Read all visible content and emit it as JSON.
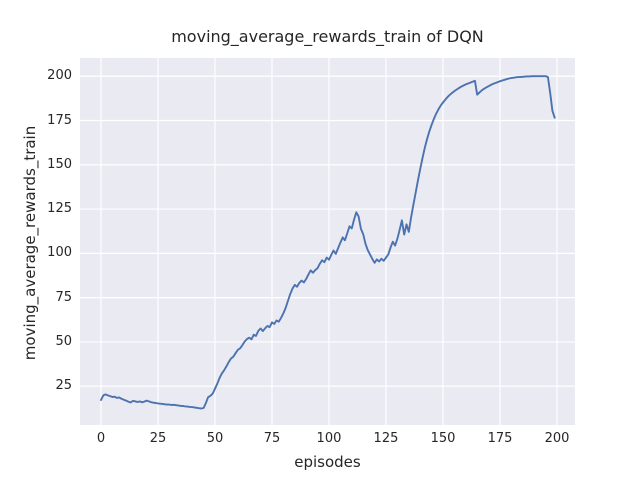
{
  "figure": {
    "background": "#ffffff"
  },
  "chart_data": {
    "type": "line",
    "title": "moving_average_rewards_train of DQN",
    "xlabel": "episodes",
    "ylabel": "moving_average_rewards_train",
    "style": "seaborn-darkgrid",
    "grid": true,
    "legend": false,
    "x_ticks": [
      0,
      25,
      50,
      75,
      100,
      125,
      150,
      175,
      200
    ],
    "y_ticks": [
      25,
      50,
      75,
      100,
      125,
      150,
      175,
      200
    ],
    "xlim": [
      -9.2,
      207.9
    ],
    "ylim": [
      3.1,
      210.3
    ],
    "colors": {
      "line": "#4C72B0",
      "plot_background": "#EAEAF2",
      "grid": "#FFFFFF",
      "text": "#262626"
    },
    "series": [
      {
        "name": "moving_average_rewards_train",
        "x_start": 0,
        "x_step": 1,
        "values": [
          17.2,
          19.8,
          20.4,
          19.8,
          19.4,
          18.9,
          19.1,
          18.4,
          18.7,
          17.9,
          17.4,
          16.9,
          16.3,
          15.8,
          16.7,
          16.5,
          16.1,
          16.4,
          15.9,
          16.3,
          16.9,
          16.4,
          16.0,
          15.7,
          15.5,
          15.3,
          15.1,
          15.0,
          14.8,
          14.7,
          14.6,
          14.4,
          14.5,
          14.3,
          14.1,
          13.9,
          13.8,
          13.6,
          13.5,
          13.3,
          13.2,
          13.0,
          12.8,
          12.6,
          12.4,
          12.7,
          15.5,
          18.8,
          19.6,
          20.8,
          23.6,
          26.4,
          29.6,
          32.1,
          34.0,
          36.2,
          38.6,
          40.6,
          41.6,
          43.6,
          45.5,
          46.4,
          48.1,
          50.2,
          51.6,
          52.4,
          51.5,
          54.1,
          53.4,
          56.2,
          57.6,
          56.1,
          57.7,
          59.0,
          58.4,
          61.0,
          60.2,
          62.1,
          61.4,
          63.6,
          66.2,
          69.3,
          73.1,
          77.0,
          80.1,
          82.2,
          81.2,
          83.3,
          84.6,
          83.6,
          85.6,
          88.2,
          90.4,
          89.1,
          90.6,
          91.7,
          94.2,
          96.1,
          95.0,
          97.6,
          96.4,
          99.2,
          101.6,
          99.7,
          103.0,
          106.1,
          109.0,
          107.4,
          111.2,
          115.3,
          114.1,
          119.2,
          123.2,
          120.8,
          113.9,
          110.8,
          105.4,
          101.9,
          99.4,
          96.9,
          94.7,
          96.6,
          95.4,
          97.0,
          95.8,
          97.6,
          99.4,
          103.2,
          106.6,
          104.4,
          108.3,
          113.4,
          118.6,
          110.6,
          116.4,
          112.2,
          120.3,
          127.2,
          134.1,
          141.0,
          147.6,
          153.8,
          159.4,
          164.4,
          168.8,
          172.6,
          175.9,
          178.8,
          181.3,
          183.4,
          185.2,
          186.8,
          188.2,
          189.5,
          190.6,
          191.6,
          192.5,
          193.3,
          194.1,
          194.8,
          195.4,
          195.9,
          196.4,
          196.9,
          197.4,
          189.6,
          190.9,
          192.0,
          192.9,
          193.7,
          194.4,
          195.1,
          195.7,
          196.2,
          196.7,
          197.2,
          197.6,
          198.0,
          198.4,
          198.7,
          199.0,
          199.2,
          199.4,
          199.5,
          199.6,
          199.7,
          199.8,
          199.9,
          199.9,
          200.0,
          200.0,
          200.0,
          200.0,
          200.0,
          200.0,
          200.0,
          199.6,
          191.0,
          180.5,
          176.6
        ]
      }
    ]
  }
}
